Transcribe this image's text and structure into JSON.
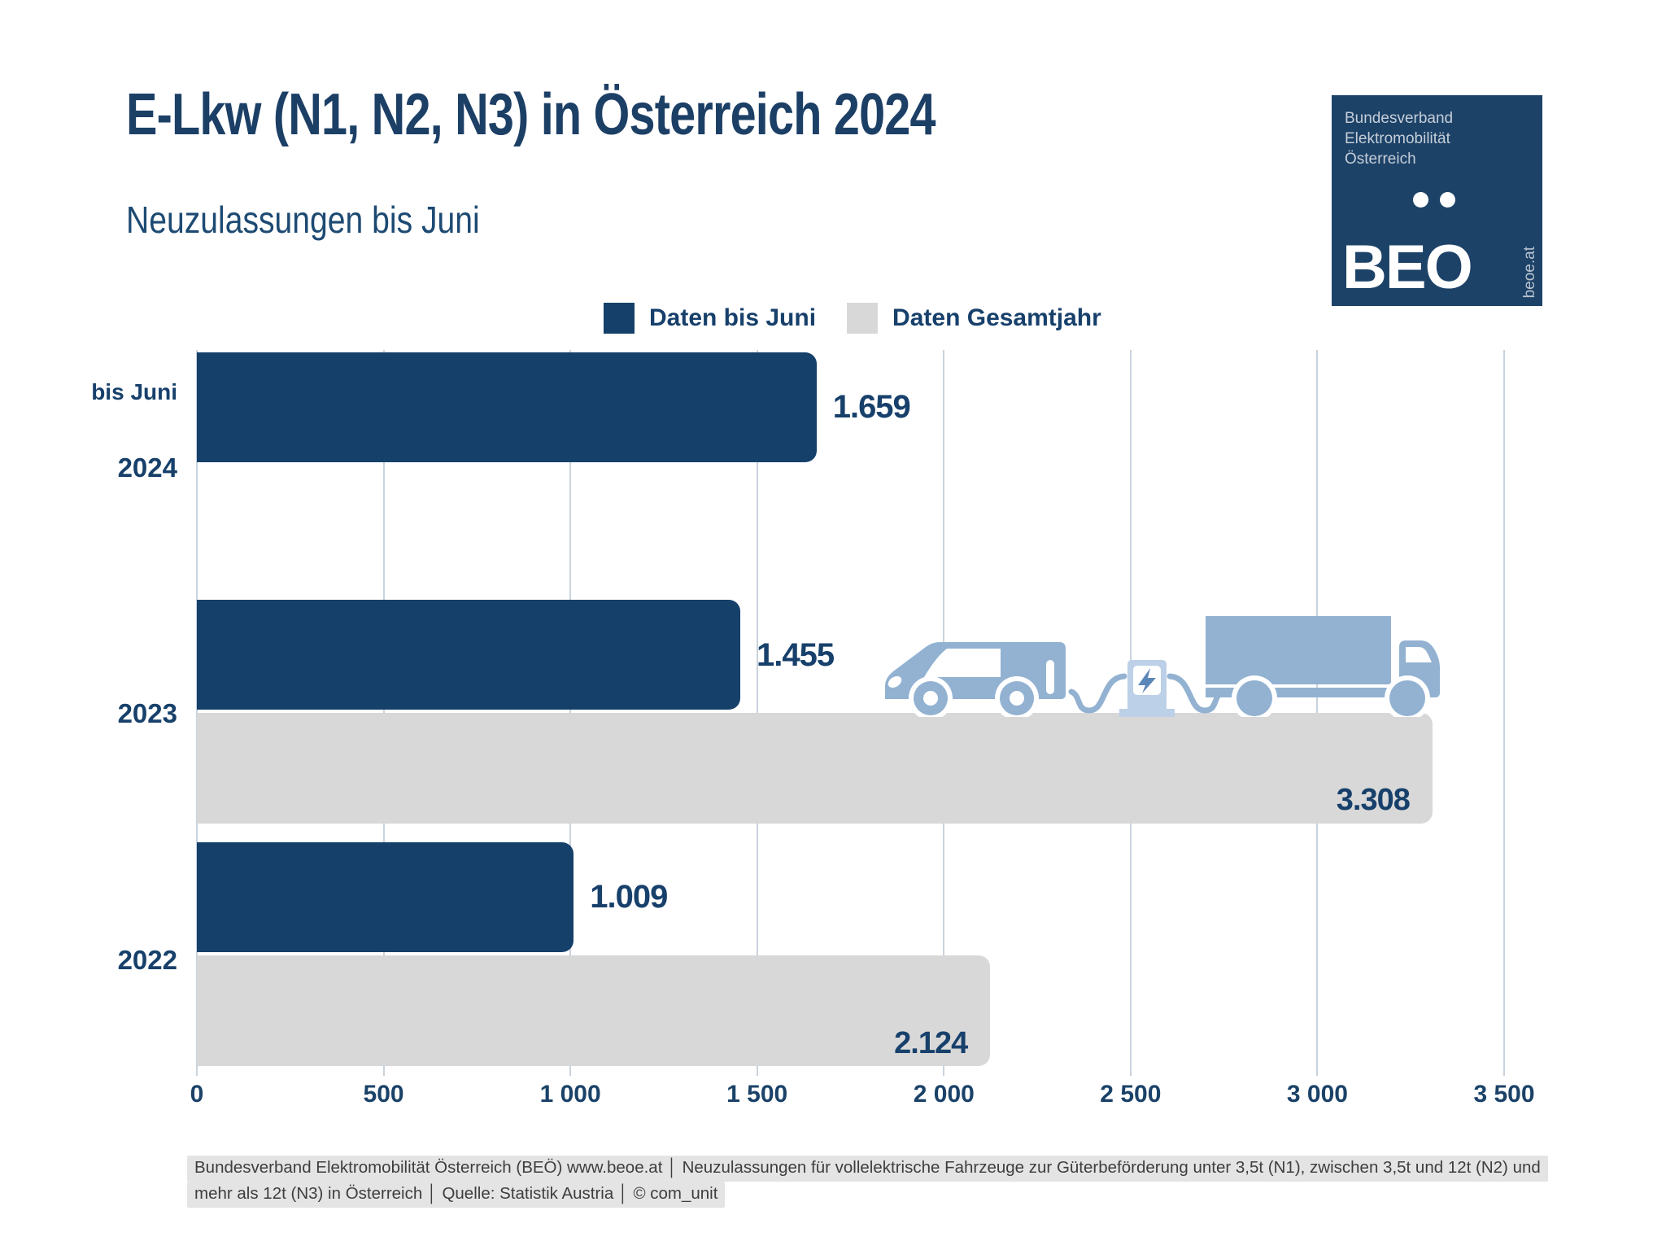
{
  "header": {
    "title": "E-Lkw (N1, N2, N3) in Österreich 2024",
    "subtitle": "Neuzulassungen bis Juni"
  },
  "logo": {
    "org_line1": "Bundesverband",
    "org_line2": "Elektromobilität",
    "org_line3": "Österreich",
    "acronym": "BEO",
    "website": "beoe.at",
    "bg_color": "#1d4268"
  },
  "legend": {
    "item1": {
      "label": "Daten bis Juni",
      "color": "#14406a"
    },
    "item2": {
      "label": "Daten Gesamtjahr",
      "color": "#d8d8d8"
    }
  },
  "chart_data": {
    "type": "bar",
    "orientation": "horizontal",
    "categories": [
      "2024",
      "2023",
      "2022"
    ],
    "category_note_2024": "bis Juni",
    "series": [
      {
        "name": "Daten bis Juni",
        "color": "#14406a",
        "values": [
          1659,
          1455,
          1009
        ],
        "labels": [
          "1.659",
          "1.455",
          "1.009"
        ]
      },
      {
        "name": "Daten Gesamtjahr",
        "color": "#d8d8d8",
        "values": [
          null,
          3308,
          2124
        ],
        "labels": [
          "",
          "3.308",
          "2.124"
        ]
      }
    ],
    "xlim": [
      0,
      3500
    ],
    "x_ticks": [
      0,
      500,
      1000,
      1500,
      2000,
      2500,
      3000,
      3500
    ],
    "x_tick_labels": [
      "0",
      "500",
      "1 000",
      "1 500",
      "2 000",
      "2 500",
      "3 000",
      "3 500"
    ],
    "grid": true,
    "legend_position": "top",
    "value_label_color": "#17406b"
  },
  "footer": {
    "line1": "Bundesverband Elektromobilität Österreich (BEÖ) www.beoe.at │ Neuzulassungen für vollelektrische Fahrzeuge zur Güterbeförderung unter 3,5t (N1), zwischen 3,5t und 12t (N2) und",
    "line2": "mehr als 12t (N3) in Österreich │ Quelle: Statistik Austria │ © com_unit"
  },
  "colors": {
    "bar_dark": "#14406a",
    "bar_gray": "#d8d8d8",
    "gridline": "#c9d3dd",
    "vehicle_blue": "#93b2d2",
    "charger_blue": "#bcd0e7",
    "text_navy": "#17406b",
    "footer_bg": "#e4e4e4"
  }
}
